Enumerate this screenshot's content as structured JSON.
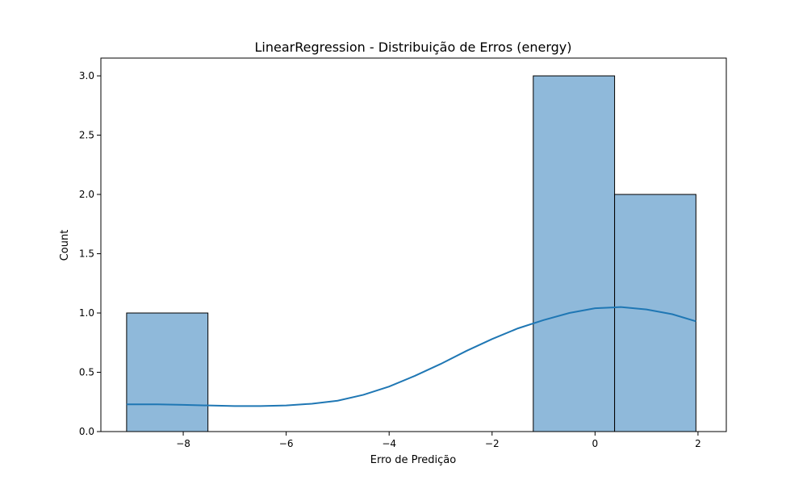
{
  "chart_data": {
    "type": "bar",
    "title": "LinearRegression - Distribuição de Erros (energy)",
    "xlabel": "Erro de Predição",
    "ylabel": "Count",
    "xlim": [
      -9.6,
      2.55
    ],
    "ylim": [
      0,
      3.15
    ],
    "xticks": [
      -8,
      -6,
      -4,
      -2,
      0,
      2
    ],
    "xtick_labels": [
      "−8",
      "−6",
      "−4",
      "−2",
      "0",
      "2"
    ],
    "yticks": [
      0.0,
      0.5,
      1.0,
      1.5,
      2.0,
      2.5,
      3.0
    ],
    "ytick_labels": [
      "0.0",
      "0.5",
      "1.0",
      "1.5",
      "2.0",
      "2.5",
      "3.0"
    ],
    "bins": [
      {
        "x0": -9.1,
        "x1": -7.52,
        "count": 1
      },
      {
        "x0": -7.52,
        "x1": -5.94,
        "count": 0
      },
      {
        "x0": -5.94,
        "x1": -4.36,
        "count": 0
      },
      {
        "x0": -4.36,
        "x1": -2.78,
        "count": 0
      },
      {
        "x0": -2.78,
        "x1": -1.2,
        "count": 0
      },
      {
        "x0": -1.2,
        "x1": 0.38,
        "count": 3
      },
      {
        "x0": 0.38,
        "x1": 1.96,
        "count": 2
      }
    ],
    "kde": {
      "x": [
        -9.1,
        -8.5,
        -8.0,
        -7.5,
        -7.0,
        -6.5,
        -6.0,
        -5.5,
        -5.0,
        -4.5,
        -4.0,
        -3.5,
        -3.0,
        -2.5,
        -2.0,
        -1.5,
        -1.0,
        -0.5,
        0.0,
        0.5,
        1.0,
        1.5,
        1.96
      ],
      "y": [
        0.23,
        0.23,
        0.225,
        0.22,
        0.215,
        0.215,
        0.22,
        0.235,
        0.26,
        0.31,
        0.38,
        0.47,
        0.57,
        0.68,
        0.78,
        0.87,
        0.94,
        1.0,
        1.04,
        1.05,
        1.03,
        0.99,
        0.93
      ]
    },
    "grid": false,
    "colors": {
      "bar_fill": "#8fb9da",
      "bar_edge": "#000000",
      "kde_line": "#1f77b4"
    }
  }
}
